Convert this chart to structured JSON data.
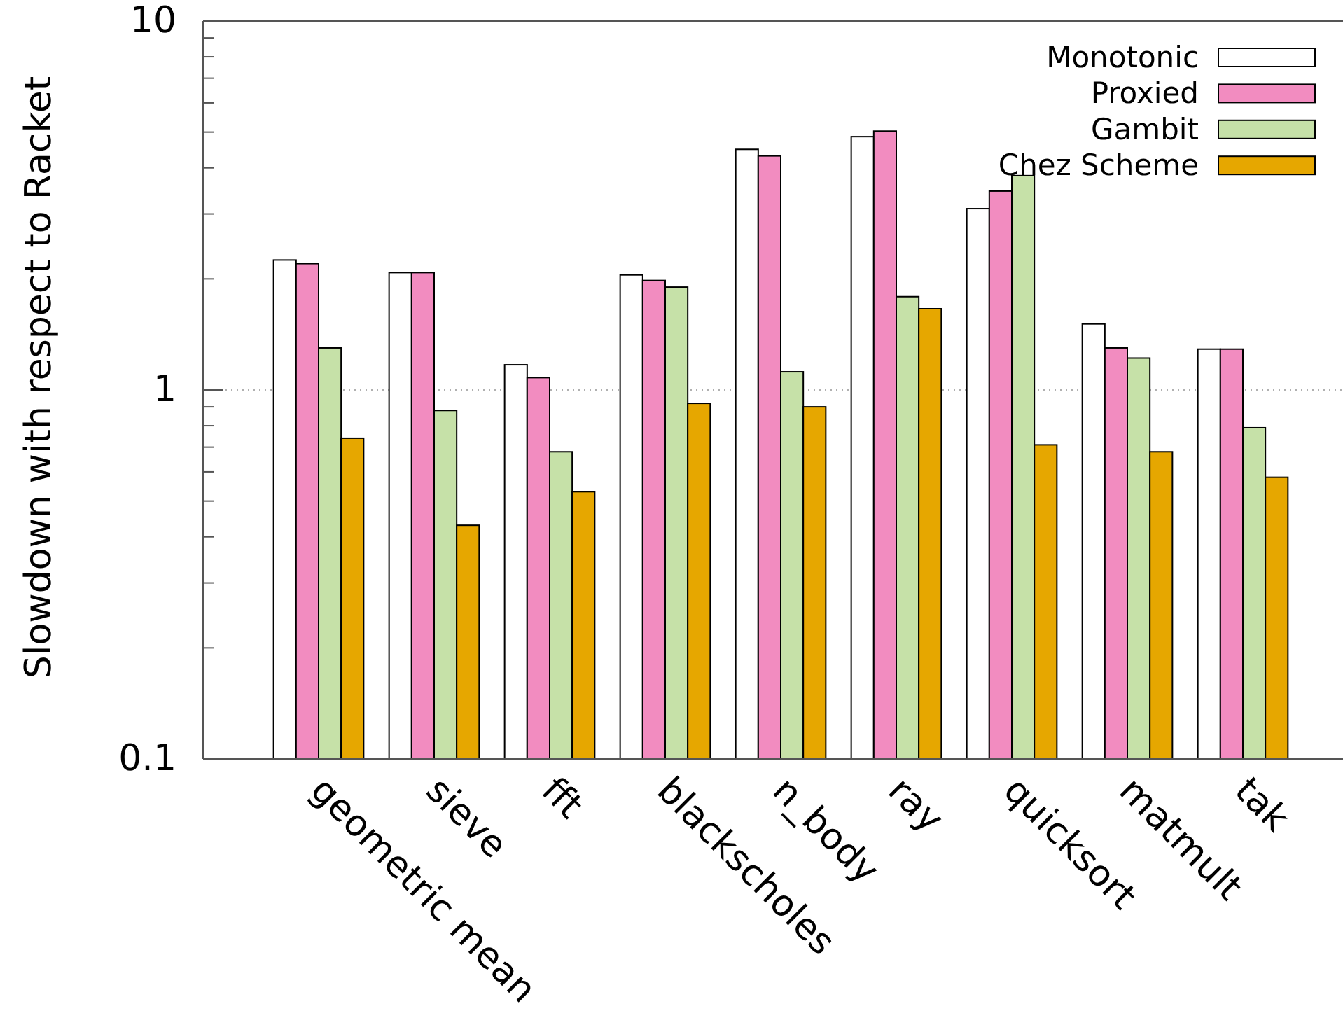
{
  "chart_data": {
    "type": "bar",
    "ylabel": "Slowdown with respect to Racket",
    "categories": [
      "geometric mean",
      "sieve",
      "fft",
      "blackscholes",
      "n_body",
      "ray",
      "quicksort",
      "matmult",
      "tak"
    ],
    "series": [
      {
        "name": "Monotonic",
        "color": "#ffffff",
        "values": [
          2.25,
          2.08,
          1.17,
          2.05,
          4.49,
          4.86,
          3.1,
          1.51,
          1.29
        ]
      },
      {
        "name": "Proxied",
        "color": "#f28cc0",
        "values": [
          2.2,
          2.08,
          1.08,
          1.98,
          4.31,
          5.03,
          3.46,
          1.3,
          1.29
        ]
      },
      {
        "name": "Gambit",
        "color": "#c6e1a8",
        "values": [
          1.3,
          0.88,
          0.68,
          1.9,
          1.12,
          1.79,
          3.81,
          1.22,
          0.79
        ]
      },
      {
        "name": "Chez Scheme",
        "color": "#e6a700",
        "values": [
          0.74,
          0.43,
          0.53,
          0.92,
          0.9,
          1.66,
          0.71,
          0.68,
          0.58
        ]
      }
    ],
    "ylim": [
      0.1,
      10
    ],
    "yticks": [
      0.1,
      {
        "value": 0.2,
        "label": null
      },
      {
        "value": 0.3,
        "label": null
      },
      {
        "value": 0.4,
        "label": null
      },
      {
        "value": 0.5,
        "label": null
      },
      {
        "value": 0.6,
        "label": null
      },
      {
        "value": 0.7,
        "label": null
      },
      {
        "value": 0.8,
        "label": null
      },
      {
        "value": 0.9,
        "label": null
      },
      1,
      {
        "value": 2,
        "label": null
      },
      {
        "value": 3,
        "label": null
      },
      {
        "value": 4,
        "label": null
      },
      {
        "value": 5,
        "label": null
      },
      {
        "value": 6,
        "label": null
      },
      {
        "value": 7,
        "label": null
      },
      {
        "value": 8,
        "label": null
      },
      {
        "value": 9,
        "label": null
      },
      10
    ],
    "log": true,
    "grid": "y",
    "legend": "top right"
  }
}
